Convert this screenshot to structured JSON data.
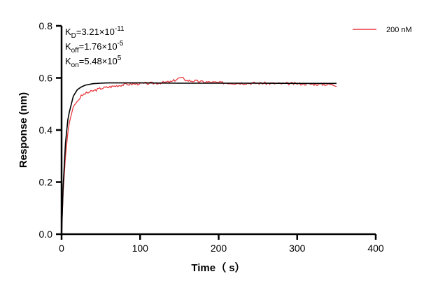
{
  "chart_data": {
    "type": "line",
    "xlabel": "Time（ s）",
    "ylabel": "Response (nm)",
    "xlim": [
      0,
      400
    ],
    "ylim": [
      0,
      0.8
    ],
    "xticks": [
      "0",
      "100",
      "200",
      "300",
      "400"
    ],
    "yticks": [
      "0.0",
      "0.2",
      "0.4",
      "0.6",
      "0.8"
    ],
    "grid": false,
    "legend_position": "top-right",
    "annotations": [
      {
        "base": "K",
        "sub": "D",
        "text": "=3.21×10",
        "sup": "-11"
      },
      {
        "base": "K",
        "sub": "off",
        "text": "=1.76×10",
        "sup": "-5"
      },
      {
        "base": "K",
        "sub": "on",
        "text": "=5.48×10",
        "sup": "5"
      }
    ],
    "series": [
      {
        "name": "200 nM",
        "color": "#e8393f",
        "x": [
          0,
          2,
          5,
          8,
          10,
          15,
          20,
          25,
          30,
          40,
          50,
          60,
          70,
          80,
          100,
          120,
          140,
          150,
          155,
          160,
          170,
          180,
          200,
          220,
          250,
          280,
          300,
          320,
          340,
          350
        ],
        "y": [
          0,
          0.16,
          0.3,
          0.39,
          0.43,
          0.49,
          0.51,
          0.53,
          0.54,
          0.55,
          0.56,
          0.565,
          0.57,
          0.575,
          0.578,
          0.58,
          0.585,
          0.6,
          0.598,
          0.59,
          0.588,
          0.585,
          0.582,
          0.58,
          0.58,
          0.578,
          0.578,
          0.576,
          0.575,
          0.572
        ]
      },
      {
        "color": "#000000",
        "x": [
          0,
          2,
          5,
          8,
          10,
          15,
          20,
          25,
          30,
          40,
          50,
          60,
          80,
          100,
          150,
          200,
          250,
          300,
          350
        ],
        "y": [
          0,
          0.18,
          0.35,
          0.44,
          0.47,
          0.53,
          0.555,
          0.565,
          0.572,
          0.578,
          0.58,
          0.581,
          0.581,
          0.581,
          0.58,
          0.58,
          0.58,
          0.579,
          0.579
        ]
      }
    ]
  }
}
